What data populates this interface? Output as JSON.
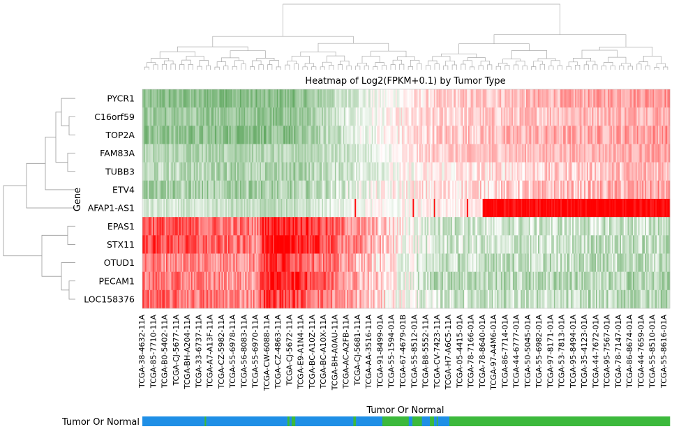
{
  "chart_data": {
    "type": "heatmap",
    "title": "Heatmap of Log2(FPKM+0.1) by Tumor Type",
    "ylabel": "Gene",
    "genes": [
      "PYCR1",
      "C16orf59",
      "TOP2A",
      "FAM83A",
      "TUBB3",
      "ETV4",
      "AFAP1-AS1",
      "EPAS1",
      "STX11",
      "OTUD1",
      "PECAM1",
      "LOC158376"
    ],
    "sample_labels": [
      "TCGA-38-4632-11A",
      "TCGA-85-7710-11A",
      "TCGA-B0-5402-11A",
      "TCGA-CJ-5677-11A",
      "TCGA-BH-A204-11A",
      "TCGA-33-6737-11A",
      "TCGA-A7-A13F-11A",
      "TCGA-CZ-5982-11A",
      "TCGA-55-6978-11A",
      "TCGA-56-8083-11A",
      "TCGA-55-6970-11A",
      "TCGA-CW-6088-11A",
      "TCGA-CZ-4863-11A",
      "TCGA-CJ-5672-11A",
      "TCGA-E9-A1N4-11A",
      "TCGA-BC-A10Z-11A",
      "TCGA-BC-A10X-11A",
      "TCGA-BH-A0AU-11A",
      "TCGA-AC-A2FB-11A",
      "TCGA-CJ-5681-11A",
      "TCGA-AA-3516-11A",
      "TCGA-91-8499-01A",
      "TCGA-55-1594-01A",
      "TCGA-67-4679-01B",
      "TCGA-55-8512-01A",
      "TCGA-B8-5552-11A",
      "TCGA-CV-7423-11A",
      "TCGA-H7-A6C5-11A",
      "TCGA-05-4415-01A",
      "TCGA-78-7166-01A",
      "TCGA-78-8640-01A",
      "TCGA-97-A4M6-01A",
      "TCGA-86-7714-01A",
      "TCGA-44-6777-01A",
      "TCGA-50-5045-01A",
      "TCGA-55-6982-01A",
      "TCGA-97-8171-01A",
      "TCGA-53-7813-01A",
      "TCGA-95-8494-01A",
      "TCGA-35-4123-01A",
      "TCGA-44-7672-01A",
      "TCGA-95-7567-01A",
      "TCGA-78-7147-01A",
      "TCGA-86-8674-01A",
      "TCGA-44-7659-01A",
      "TCGA-55-8510-01A",
      "TCGA-55-8616-01A"
    ],
    "annotation": {
      "title": "Tumor Or Normal",
      "row_label": "Tumor Or Normal",
      "segments": [
        {
          "from": 0.0,
          "to": 0.118,
          "color": "#1f8fe6"
        },
        {
          "from": 0.118,
          "to": 0.121,
          "color": "#3cb93c"
        },
        {
          "from": 0.121,
          "to": 0.275,
          "color": "#1f8fe6"
        },
        {
          "from": 0.275,
          "to": 0.279,
          "color": "#3cb93c"
        },
        {
          "from": 0.279,
          "to": 0.283,
          "color": "#1f8fe6"
        },
        {
          "from": 0.283,
          "to": 0.29,
          "color": "#3cb93c"
        },
        {
          "from": 0.29,
          "to": 0.4,
          "color": "#1f8fe6"
        },
        {
          "from": 0.4,
          "to": 0.405,
          "color": "#3cb93c"
        },
        {
          "from": 0.405,
          "to": 0.41,
          "color": "#1f8fe6"
        },
        {
          "from": 0.41,
          "to": 0.455,
          "color": "#1f8fe6"
        },
        {
          "from": 0.455,
          "to": 0.505,
          "color": "#3cb93c"
        },
        {
          "from": 0.505,
          "to": 0.512,
          "color": "#1f8fe6"
        },
        {
          "from": 0.512,
          "to": 0.53,
          "color": "#3cb93c"
        },
        {
          "from": 0.53,
          "to": 0.545,
          "color": "#1f8fe6"
        },
        {
          "from": 0.545,
          "to": 0.553,
          "color": "#3cb93c"
        },
        {
          "from": 0.553,
          "to": 0.558,
          "color": "#1f8fe6"
        },
        {
          "from": 0.558,
          "to": 0.56,
          "color": "#3cb93c"
        },
        {
          "from": 0.56,
          "to": 0.582,
          "color": "#1f8fe6"
        },
        {
          "from": 0.582,
          "to": 1.0,
          "color": "#3cb93c"
        }
      ]
    },
    "color_scale": {
      "low": "#2a8a2a",
      "mid": "#ffffff",
      "high": "#ff0000"
    },
    "gene_profiles": [
      {
        "gene": "PYCR1",
        "bp": [
          0,
          0.29,
          0.41,
          0.55,
          1
        ],
        "v": [
          -0.55,
          -0.55,
          -0.15,
          0.15,
          0.45
        ],
        "noise": 0.35
      },
      {
        "gene": "C16orf59",
        "bp": [
          0,
          0.29,
          0.41,
          0.55,
          1
        ],
        "v": [
          -0.45,
          -0.5,
          -0.1,
          0.15,
          0.35
        ],
        "noise": 0.35
      },
      {
        "gene": "TOP2A",
        "bp": [
          0,
          0.29,
          0.41,
          0.55,
          1
        ],
        "v": [
          -0.5,
          -0.55,
          -0.1,
          0.2,
          0.4
        ],
        "noise": 0.4
      },
      {
        "gene": "FAM83A",
        "bp": [
          0,
          0.29,
          0.41,
          0.55,
          1
        ],
        "v": [
          -0.35,
          -0.35,
          -0.2,
          0.2,
          0.35
        ],
        "noise": 0.3
      },
      {
        "gene": "TUBB3",
        "bp": [
          0,
          0.29,
          0.41,
          0.55,
          1
        ],
        "v": [
          -0.3,
          -0.4,
          -0.15,
          0.05,
          0.3
        ],
        "noise": 0.4
      },
      {
        "gene": "ETV4",
        "bp": [
          0,
          0.29,
          0.41,
          0.55,
          1
        ],
        "v": [
          -0.4,
          -0.4,
          -0.1,
          0.1,
          0.35
        ],
        "noise": 0.45
      },
      {
        "gene": "AFAP1-AS1",
        "bp": [
          0,
          0.28,
          0.4,
          0.645,
          0.646,
          1
        ],
        "v": [
          -0.2,
          -0.3,
          -0.05,
          0.1,
          1.0,
          1.0
        ],
        "noise": 0.3
      },
      {
        "gene": "EPAS1",
        "bp": [
          0,
          0.22,
          0.23,
          0.29,
          0.55,
          1
        ],
        "v": [
          0.7,
          0.5,
          0.9,
          0.9,
          -0.2,
          -0.25
        ],
        "noise": 0.5
      },
      {
        "gene": "STX11",
        "bp": [
          0,
          0.22,
          0.23,
          0.29,
          0.55,
          1
        ],
        "v": [
          0.75,
          0.5,
          0.95,
          0.95,
          -0.2,
          -0.3
        ],
        "noise": 0.5
      },
      {
        "gene": "OTUD1",
        "bp": [
          0,
          0.22,
          0.23,
          0.29,
          0.55,
          1
        ],
        "v": [
          0.5,
          0.45,
          0.85,
          0.75,
          -0.25,
          -0.3
        ],
        "noise": 0.5
      },
      {
        "gene": "PECAM1",
        "bp": [
          0,
          0.22,
          0.23,
          0.29,
          0.55,
          1
        ],
        "v": [
          0.55,
          0.4,
          0.9,
          0.9,
          -0.3,
          -0.35
        ],
        "noise": 0.5
      },
      {
        "gene": "LOC158376",
        "bp": [
          0,
          0.22,
          0.23,
          0.29,
          0.55,
          1
        ],
        "v": [
          0.6,
          0.45,
          0.8,
          0.7,
          -0.2,
          -0.35
        ],
        "noise": 0.5
      }
    ],
    "sample_count": 400
  }
}
